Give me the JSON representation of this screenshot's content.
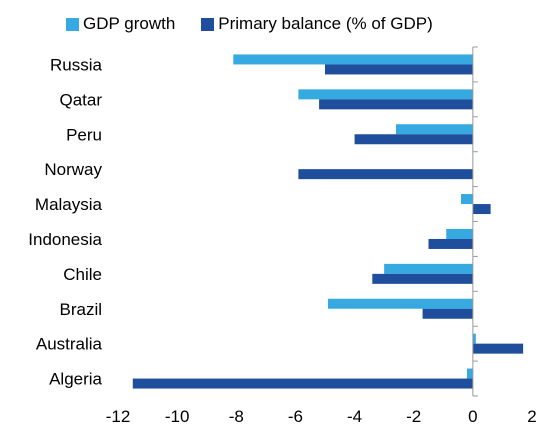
{
  "chart_data": {
    "type": "bar",
    "orientation": "horizontal",
    "categories": [
      "Russia",
      "Qatar",
      "Peru",
      "Norway",
      "Malaysia",
      "Indonesia",
      "Chile",
      "Brazil",
      "Australia",
      "Algeria"
    ],
    "series": [
      {
        "name": "GDP growth",
        "color": "#36a9e1",
        "values": [
          -8.1,
          -5.9,
          -2.6,
          0,
          -0.4,
          -0.9,
          -3.0,
          -4.9,
          0.1,
          -0.2
        ]
      },
      {
        "name": "Primary balance (% of GDP)",
        "color": "#1f4e9c",
        "values": [
          -5.0,
          -5.2,
          -4.0,
          -5.9,
          0.6,
          -1.5,
          -3.4,
          -1.7,
          1.7,
          -11.5
        ]
      }
    ],
    "xlim": [
      -12,
      2
    ],
    "xticks": [
      -12,
      -10,
      -8,
      -6,
      -4,
      -2,
      0,
      2
    ],
    "xtick_labels": [
      "-12",
      "-10",
      "-8",
      "-6",
      "-4",
      "-2",
      "0",
      "2"
    ],
    "legend_position": "top",
    "grid": false
  }
}
